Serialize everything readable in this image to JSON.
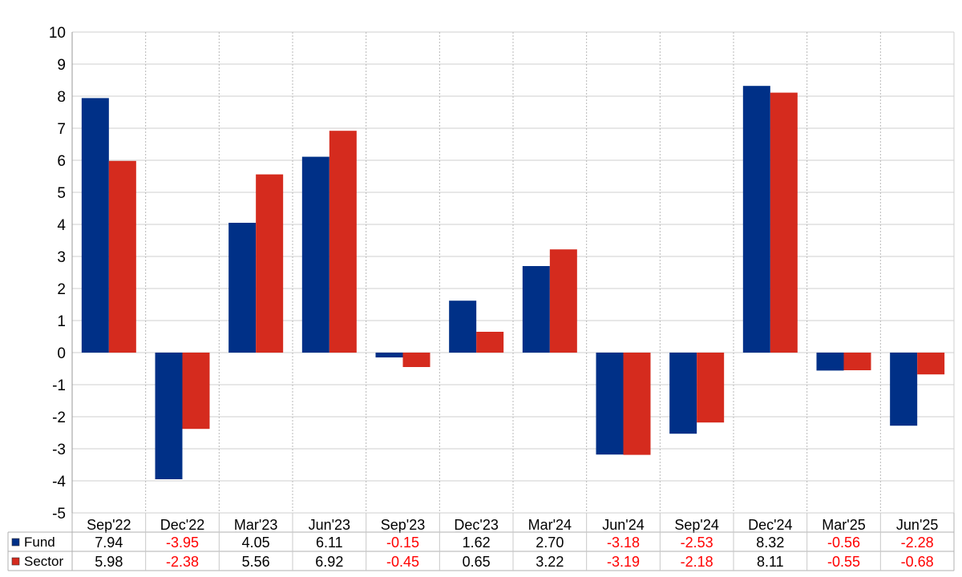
{
  "chart_data": {
    "type": "bar",
    "categories": [
      "Sep'22",
      "Dec'22",
      "Mar'23",
      "Jun'23",
      "Sep'23",
      "Dec'23",
      "Mar'24",
      "Jun'24",
      "Sep'24",
      "Dec'24",
      "Mar'25",
      "Jun'25"
    ],
    "series": [
      {
        "name": "Fund",
        "color": "#003087",
        "values": [
          7.94,
          -3.95,
          4.05,
          6.11,
          -0.15,
          1.62,
          2.7,
          -3.18,
          -2.53,
          8.32,
          -0.56,
          -2.28
        ],
        "labels": [
          "7.94",
          "-3.95",
          "4.05",
          "6.11",
          "-0.15",
          "1.62",
          "2.70",
          "-3.18",
          "-2.53",
          "8.32",
          "-0.56",
          "-2.28"
        ]
      },
      {
        "name": "Sector",
        "color": "#d52b1e",
        "values": [
          5.98,
          -2.38,
          5.56,
          6.92,
          -0.45,
          0.65,
          3.22,
          -3.19,
          -2.18,
          8.11,
          -0.55,
          -0.68
        ],
        "labels": [
          "5.98",
          "-2.38",
          "5.56",
          "6.92",
          "-0.45",
          "0.65",
          "3.22",
          "-3.19",
          "-2.18",
          "8.11",
          "-0.55",
          "-0.68"
        ]
      }
    ],
    "ylim": [
      -5,
      10
    ],
    "yticks": [
      "-5",
      "-4",
      "-3",
      "-2",
      "-1",
      "0",
      "1",
      "2",
      "3",
      "4",
      "5",
      "6",
      "7",
      "8",
      "9",
      "10"
    ],
    "grid": true,
    "legend": "data-table-left",
    "negative_label_color": "#ff0000",
    "title": "",
    "xlabel": "",
    "ylabel": ""
  }
}
